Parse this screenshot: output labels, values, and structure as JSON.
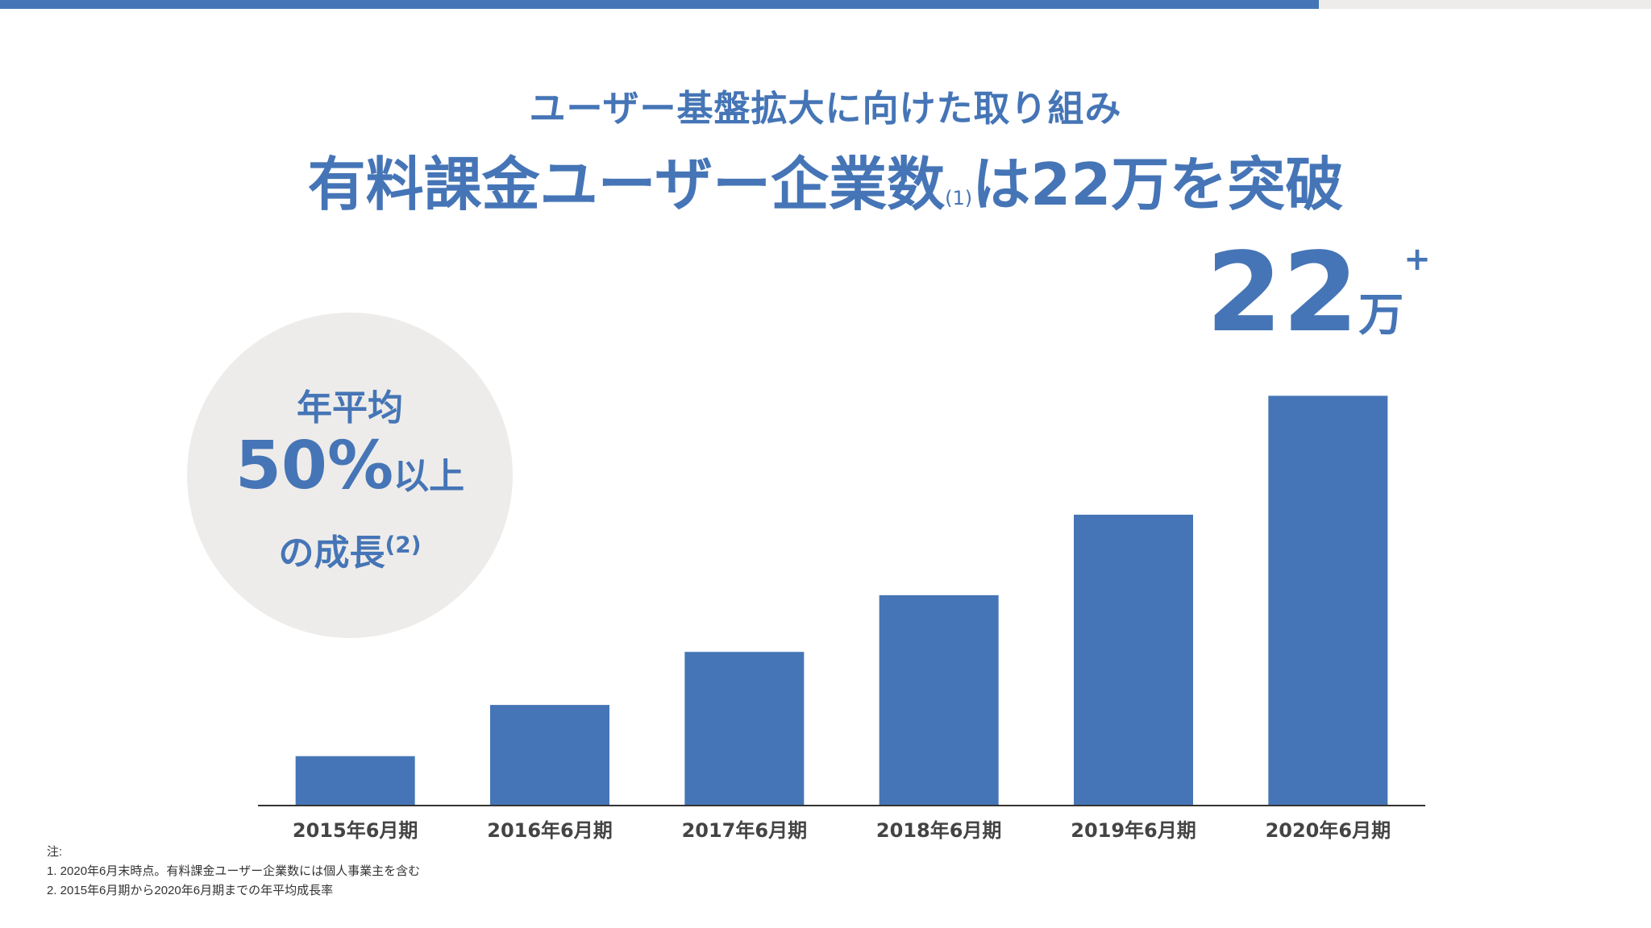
{
  "colors": {
    "accent": "#4575b6",
    "circle_bg": "#eeecea",
    "axis": "#333333"
  },
  "header": {
    "subtitle": "ユーザー基盤拡大に向けた取り組み",
    "title_main": "有料課金ユーザー企業数",
    "title_note_ref": "(1)",
    "title_tail": "は22万を突破"
  },
  "growth_badge": {
    "line1": "年平均",
    "percent": "50%",
    "percent_suffix": "以上",
    "line3": "の成長",
    "note_ref": "(2)"
  },
  "highlight": {
    "value": "22",
    "unit": "万",
    "plus": "+"
  },
  "chart_data": {
    "type": "bar",
    "categories": [
      "2015年6月期",
      "2016年6月期",
      "2017年6月期",
      "2018年6月期",
      "2019年6月期",
      "2020年6月期"
    ],
    "values": [
      2.7,
      5.5,
      8.4,
      11.5,
      15.9,
      22.4
    ],
    "ylim": [
      0,
      24
    ],
    "grid": false,
    "color": "#4575b6"
  },
  "notes": {
    "heading": "注:",
    "items": [
      "1.  2020年6月末時点。有料課金ユーザー企業数には個人事業主を含む",
      "2.  2015年6月期から2020年6月期までの年平均成長率"
    ]
  }
}
